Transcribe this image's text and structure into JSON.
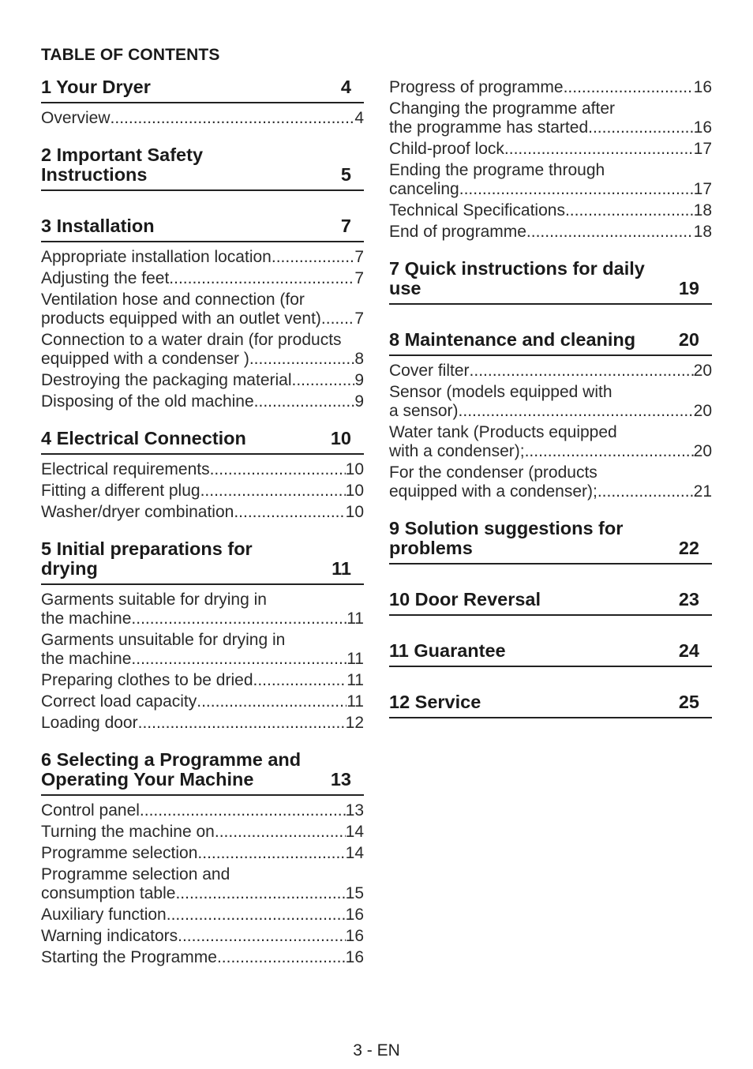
{
  "document": {
    "heading": "TABLE OF CONTENTS",
    "page_number": "3 - EN"
  },
  "left_column": [
    {
      "title": "1  Your Dryer",
      "page": "4",
      "items": [
        {
          "text": "Overview ",
          "page": "4"
        }
      ]
    },
    {
      "title": "2  Important Safety Instructions",
      "page": "5",
      "items": []
    },
    {
      "title": "3  Installation",
      "page": "7",
      "items": [
        {
          "text": "Appropriate installation location ",
          "page": "7"
        },
        {
          "text": "Adjusting the feet",
          "page": "7"
        },
        {
          "pre": "Ventilation hose and connection (for",
          "text": "products equipped with an outlet vent) ",
          "page": "7"
        },
        {
          "pre": "Connection to a water drain (for products",
          "text": "equipped with a condenser ) ",
          "page": "8"
        },
        {
          "text": "Destroying the packaging material ",
          "page": "9"
        },
        {
          "text": "Disposing of the old machine",
          "page": "9"
        }
      ]
    },
    {
      "title": "4  Electrical Connection",
      "page": "10",
      "items": [
        {
          "text": "Electrical requirements",
          "page": "10"
        },
        {
          "text": "Fitting a different plug ",
          "page": "10"
        },
        {
          "text": "Washer/dryer combination",
          "page": "10"
        }
      ]
    },
    {
      "title": "5   Initial preparations for drying",
      "page": "11",
      "items": [
        {
          "pre": "Garments suitable for drying in",
          "text": "the machine",
          "page": "11"
        },
        {
          "pre": "Garments unsuitable for drying in",
          "text": "the machine",
          "page": "11"
        },
        {
          "text": "Preparing clothes to be dried",
          "page": "11"
        },
        {
          "text": "Correct load capacity ",
          "page": "11"
        },
        {
          "text": "Loading door",
          "page": "12"
        }
      ]
    },
    {
      "title": "6  Selecting a Programme and Operating Your Machine",
      "page": "13",
      "items": [
        {
          "text": "Control panel",
          "page": "13"
        },
        {
          "text": "Turning the machine on ",
          "page": "14"
        },
        {
          "text": "Programme selection",
          "page": "14"
        },
        {
          "pre": "Programme selection and",
          "text": "consumption table",
          "page": "15"
        },
        {
          "text": "Auxiliary function",
          "page": "16"
        },
        {
          "text": "Warning indicators",
          "page": "16"
        },
        {
          "text": "Starting the Programme ",
          "page": "16"
        }
      ]
    }
  ],
  "right_column_items_continued": [
    {
      "text": "Progress of programme",
      "page": "16"
    },
    {
      "pre": "Changing the programme after",
      "text": "the programme has started ",
      "page": "16"
    },
    {
      "text": "Child-proof lock",
      "page": "17"
    },
    {
      "pre": "Ending the programe through",
      "text": "canceling",
      "page": "17"
    },
    {
      "text": "Technical Specifications",
      "page": "18"
    },
    {
      "text": "End of programme ",
      "page": "18"
    }
  ],
  "right_column": [
    {
      "title": "7  Quick instructions for daily use",
      "page": "19",
      "items": []
    },
    {
      "title": "8  Maintenance and cleaning",
      "page": "20",
      "items": [
        {
          "text": "Cover filter ",
          "page": "20"
        },
        {
          "pre": "Sensor (models equipped with",
          "text": "a sensor) ",
          "page": "20"
        },
        {
          "pre": "Water tank (Products equipped",
          "text": "with a condenser); ",
          "page": "20"
        },
        {
          "pre": "For the condenser (products",
          "text": "equipped with a condenser); ",
          "page": "21"
        }
      ]
    },
    {
      "title": "9  Solution suggestions for problems",
      "page": "22",
      "items": []
    },
    {
      "title": "10  Door Reversal",
      "page": "23",
      "items": []
    },
    {
      "title": "11  Guarantee",
      "page": "24",
      "items": []
    },
    {
      "title": "12  Service",
      "page": "25",
      "items": []
    }
  ]
}
